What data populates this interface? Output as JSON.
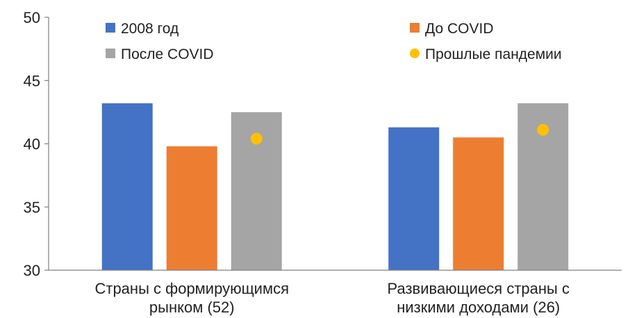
{
  "chart_data": {
    "type": "bar",
    "categories": [
      [
        "Страны с формирующимся",
        "рынком (52)"
      ],
      [
        "Развивающиеся страны с",
        "низкими доходами (26)"
      ]
    ],
    "series": [
      {
        "name": "2008 год",
        "color": "#4472C4",
        "values": [
          43.2,
          41.3
        ]
      },
      {
        "name": "До COVID",
        "color": "#ED7D31",
        "values": [
          39.8,
          40.5
        ]
      },
      {
        "name": "После COVID",
        "color": "#A5A5A5",
        "values": [
          42.5,
          43.2
        ]
      }
    ],
    "markers": {
      "name": "Прошлые пандемии",
      "color": "#FFC000",
      "values": [
        40.4,
        41.1
      ]
    },
    "ylim": [
      30,
      50
    ],
    "yticks": [
      30,
      35,
      40,
      45,
      50
    ],
    "xlabel": "",
    "ylabel": "",
    "title": "",
    "grid": false,
    "legend": "top"
  }
}
